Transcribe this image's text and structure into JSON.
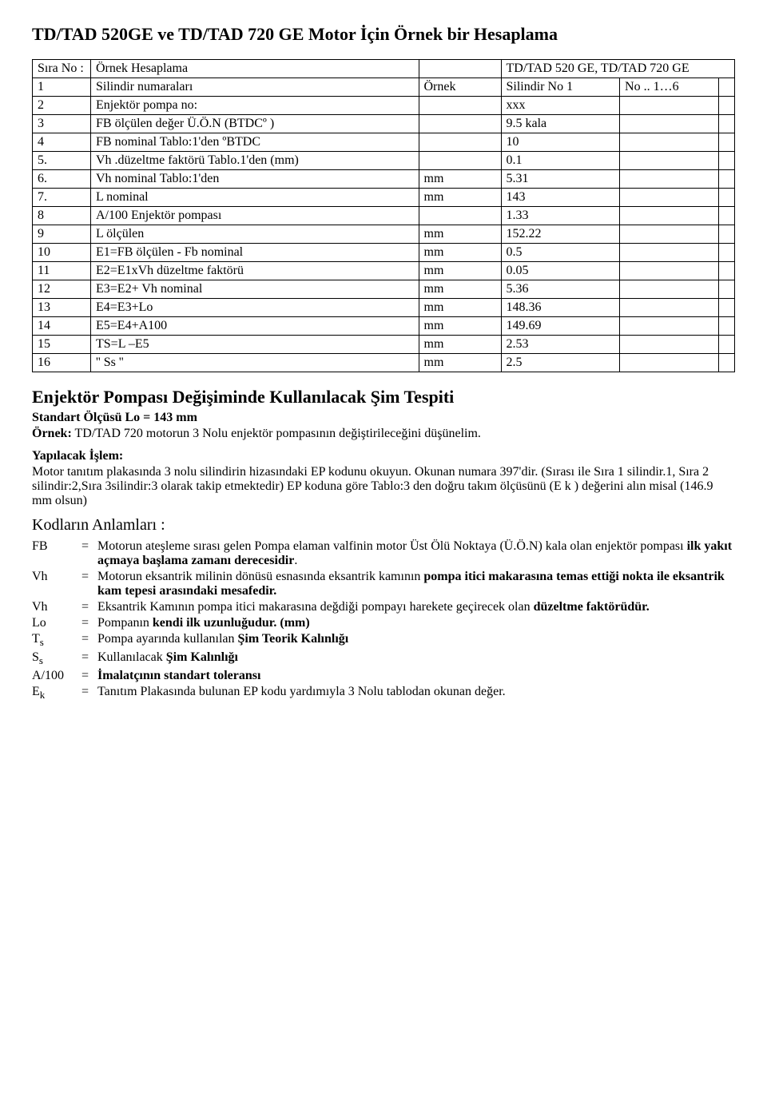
{
  "title": "TD/TAD 520GE ve TD/TAD 720 GE  Motor İçin Örnek bir Hesaplama",
  "table": {
    "h_sira": "Sıra No :",
    "h_ornek": "Örnek Hesaplama",
    "h_right": "TD/TAD 520 GE, TD/TAD 720 GE",
    "rows": [
      {
        "n": "1",
        "d": "Silindir numaraları",
        "u": "Örnek",
        "v": "Silindir No 1",
        "e": "No .. 1…6"
      },
      {
        "n": "2",
        "d": "Enjektör pompa no:",
        "u": "",
        "v": "xxx",
        "e": ""
      },
      {
        "n": "3",
        "d": "FB  ölçülen değer  Ü.Ö.N (BTDCº )",
        "u": "",
        "v": "9.5 kala",
        "e": ""
      },
      {
        "n": "4",
        "d": "FB nominal  Tablo:1'den  ºBTDC",
        "u": "",
        "v": "10",
        "e": ""
      },
      {
        "n": "5.",
        "d": "       Vh .düzeltme faktörü Tablo.1'den (mm)",
        "u": "",
        "v": "0.1",
        "e": ""
      },
      {
        "n": "6.",
        "d": "     Vh  nominal    Tablo:1'den",
        "u": "mm",
        "v": "5.31",
        "e": ""
      },
      {
        "n": "7.",
        "d": "     L    nominal",
        "u": "mm",
        "v": "143",
        "e": ""
      },
      {
        "n": "8",
        "d": "A/100  Enjektör pompası",
        "u": "",
        "v": "1.33",
        "e": ""
      },
      {
        "n": "9",
        "d": "L   ölçülen",
        "u": "mm",
        "v": "152.22",
        "e": ""
      },
      {
        "n": "10",
        "d": "E1=FB ölçülen  - Fb nominal",
        "u": "mm",
        "v": "0.5",
        "e": ""
      },
      {
        "n": "11",
        "d": "E2=E1xVh  düzeltme faktörü",
        "u": "mm",
        "v": "0.05",
        "e": ""
      },
      {
        "n": "12",
        "d": "E3=E2+ Vh      nominal",
        "u": "mm",
        "v": "5.36",
        "e": ""
      },
      {
        "n": "13",
        "d": "E4=E3+Lo",
        "u": "mm",
        "v": "148.36",
        "e": ""
      },
      {
        "n": "14",
        "d": "E5=E4+A100",
        "u": "mm",
        "v": "149.69",
        "e": ""
      },
      {
        "n": "15",
        "d": "TS=L –E5",
        "u": "mm",
        "v": "2.53",
        "e": ""
      },
      {
        "n": "16",
        "d": "'' Ss ''",
        "u": "mm",
        "v": "2.5",
        "e": ""
      }
    ]
  },
  "section2_title": "Enjektör Pompası Değişiminde Kullanılacak Şim Tespiti",
  "section2_sub": "Standart Ölçüsü   Lo = 143 mm",
  "ornek_label": "Örnek:",
  "ornek_text": "  TD/TAD 720 motorun 3 Nolu enjektör pompasının değiştirileceğini düşünelim.",
  "yapilacak_label": "Yapılacak İşlem:",
  "yapilacak_p1": "Motor tanıtım plakasında 3 nolu silindirin hizasındaki EP kodunu okuyun. Okunan numara 397'dir.  (Sırası ile Sıra 1 silindir.1, Sıra 2 silindir:2,Sıra 3silindir:3 olarak takip etmektedir) EP koduna  göre Tablo:3 den  doğru takım  ölçüsünü (E k ) değerini alın misal (146.9 mm olsun)",
  "kodlar_title": "Kodların Anlamları  :",
  "defs": [
    {
      "sym": "FB",
      "eq": "=",
      "pre": "Motorun ateşleme  sırası gelen Pompa elaman  valfinin motor Üst Ölü Noktaya (Ü.Ö.N) kala  olan enjektör pompası ",
      "b": "ilk yakıt açmaya başlama  zamanı derecesidir",
      "post": "."
    },
    {
      "sym": "Vh",
      "eq": "=",
      "pre": "Motorun eksantrik milinin dönüsü esnasında eksantrik kamının ",
      "b": "pompa itici makarasına temas ettiği  nokta ile  eksantrik kam tepesi arasındaki mesafedir.",
      "post": ""
    },
    {
      "sym": "Vh",
      "eq": "=",
      "pre": "Eksantrik Kamının pompa itici makarasına değdiği pompayı harekete geçirecek olan ",
      "b": "düzeltme faktörüdür.",
      "post": ""
    },
    {
      "sym": "Lo",
      "eq": "=",
      "pre": "Pompanın ",
      "b": "kendi ilk  uzunluğudur. (mm)",
      "post": ""
    },
    {
      "sym": "Ts",
      "eq": "=",
      "pre": "Pompa ayarında kullanılan ",
      "b": "Şim Teorik Kalınlığı",
      "post": ""
    },
    {
      "sym": "Ss",
      "eq": "=",
      "pre": "Kullanılacak ",
      "b": "Şim Kalınlığı",
      "post": ""
    },
    {
      "sym": "A/100",
      "eq": "=",
      "pre": "",
      "b": "İmalatçının standart  toleransı",
      "post": ""
    },
    {
      "sym": "Ek",
      "eq": "=",
      "pre": "Tanıtım Plakasında bulunan  EP kodu yardımıyla 3 Nolu tablodan okunan değer.",
      "b": "",
      "post": ""
    }
  ]
}
